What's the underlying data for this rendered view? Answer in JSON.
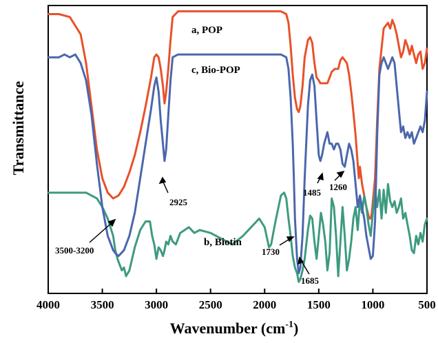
{
  "chart_data": {
    "type": "line",
    "xlabel": "Wavenumber (cm",
    "xlabel_sup": "-1",
    "xlabel_close": ")",
    "ylabel": "Transmittance",
    "xlim": [
      4000,
      500
    ],
    "x_reversed": true,
    "ylim": [
      0,
      100
    ],
    "y_ticks_shown": false,
    "grid": false,
    "x_ticks": [
      4000,
      3500,
      3000,
      2500,
      2000,
      1500,
      1000,
      500
    ],
    "x_tick_labels": [
      "4000",
      "3500",
      "3000",
      "2500",
      "2000",
      "1500",
      "1000",
      "500"
    ],
    "series": [
      {
        "name": "a, POP",
        "color": "#e8512a",
        "x": [
          4000,
          3900,
          3800,
          3700,
          3650,
          3600,
          3550,
          3500,
          3450,
          3400,
          3350,
          3300,
          3250,
          3200,
          3150,
          3100,
          3050,
          3020,
          3000,
          2980,
          2960,
          2940,
          2925,
          2910,
          2890,
          2870,
          2850,
          2800,
          2750,
          2500,
          2000,
          1850,
          1800,
          1780,
          1760,
          1740,
          1720,
          1700,
          1685,
          1670,
          1650,
          1630,
          1600,
          1580,
          1560,
          1540,
          1520,
          1500,
          1485,
          1470,
          1450,
          1420,
          1400,
          1380,
          1350,
          1320,
          1300,
          1280,
          1260,
          1240,
          1220,
          1200,
          1180,
          1160,
          1140,
          1130,
          1120,
          1100,
          1080,
          1060,
          1040,
          1030,
          1020,
          1010,
          1000,
          980,
          960,
          940,
          900,
          860,
          840,
          820,
          800,
          780,
          760,
          740,
          720,
          700,
          680,
          660,
          640,
          620,
          600,
          580,
          560,
          540,
          520,
          500
        ],
        "y": [
          97,
          97,
          96,
          90,
          80,
          65,
          50,
          40,
          35,
          33,
          34,
          37,
          42,
          48,
          56,
          65,
          75,
          82,
          83,
          82,
          78,
          72,
          66,
          70,
          78,
          88,
          96,
          98,
          98,
          98,
          98,
          98,
          97,
          94,
          86,
          76,
          68,
          64,
          63,
          65,
          72,
          82,
          88,
          89,
          87,
          80,
          75,
          74,
          73,
          73,
          73,
          73,
          75,
          77,
          78,
          78,
          81,
          82,
          81,
          80,
          76,
          70,
          63,
          55,
          45,
          40,
          44,
          38,
          34,
          30,
          27,
          26,
          26,
          28,
          32,
          40,
          60,
          78,
          92,
          94,
          92,
          95,
          93,
          90,
          86,
          82,
          84,
          88,
          86,
          83,
          86,
          83,
          80,
          83,
          84,
          78,
          80,
          85
        ]
      },
      {
        "name": "b, Biotin",
        "color": "#3d9a80",
        "x": [
          4000,
          3900,
          3800,
          3700,
          3650,
          3600,
          3550,
          3500,
          3450,
          3400,
          3380,
          3360,
          3340,
          3320,
          3300,
          3280,
          3250,
          3200,
          3150,
          3100,
          3060,
          3040,
          3020,
          3000,
          2980,
          2960,
          2940,
          2925,
          2910,
          2890,
          2870,
          2850,
          2820,
          2780,
          2700,
          2650,
          2600,
          2500,
          2400,
          2300,
          2200,
          2100,
          2050,
          2000,
          1960,
          1940,
          1900,
          1850,
          1820,
          1800,
          1780,
          1760,
          1740,
          1730,
          1720,
          1700,
          1685,
          1670,
          1650,
          1630,
          1600,
          1580,
          1560,
          1540,
          1520,
          1500,
          1480,
          1460,
          1440,
          1420,
          1400,
          1380,
          1360,
          1340,
          1320,
          1300,
          1280,
          1260,
          1240,
          1220,
          1200,
          1180,
          1160,
          1140,
          1120,
          1100,
          1080,
          1060,
          1040,
          1020,
          1000,
          980,
          960,
          940,
          920,
          900,
          880,
          860,
          840,
          820,
          800,
          780,
          760,
          740,
          720,
          700,
          680,
          660,
          640,
          620,
          600,
          580,
          560,
          540,
          520,
          500
        ],
        "y": [
          35,
          35,
          35,
          35,
          35,
          34,
          33,
          30,
          26,
          20,
          15,
          12,
          10,
          8,
          9,
          6,
          8,
          16,
          22,
          25,
          25,
          20,
          17,
          12,
          16,
          15,
          13,
          15,
          18,
          17,
          20,
          18,
          17,
          21,
          23,
          21,
          22,
          21,
          19,
          17,
          20,
          24,
          26,
          23,
          16,
          17,
          25,
          34,
          35,
          33,
          26,
          20,
          13,
          11,
          9,
          7,
          4,
          5,
          8,
          12,
          22,
          27,
          26,
          18,
          12,
          20,
          28,
          24,
          18,
          8,
          14,
          33,
          30,
          20,
          6,
          18,
          30,
          20,
          8,
          12,
          18,
          26,
          30,
          22,
          32,
          28,
          34,
          30,
          24,
          20,
          28,
          36,
          30,
          36,
          26,
          36,
          28,
          38,
          32,
          30,
          32,
          28,
          30,
          33,
          26,
          28,
          24,
          20,
          15,
          14,
          20,
          17,
          21,
          18,
          24,
          26
        ]
      },
      {
        "name": "c, Bio-POP",
        "color": "#4a66ad",
        "x": [
          4000,
          3900,
          3850,
          3800,
          3750,
          3700,
          3650,
          3600,
          3550,
          3500,
          3450,
          3400,
          3380,
          3350,
          3300,
          3250,
          3200,
          3150,
          3100,
          3050,
          3020,
          3000,
          2980,
          2960,
          2940,
          2925,
          2910,
          2890,
          2870,
          2850,
          2800,
          2750,
          2500,
          2000,
          1850,
          1800,
          1780,
          1760,
          1740,
          1730,
          1720,
          1700,
          1685,
          1670,
          1650,
          1630,
          1600,
          1580,
          1560,
          1540,
          1520,
          1500,
          1485,
          1470,
          1450,
          1420,
          1400,
          1380,
          1360,
          1340,
          1320,
          1300,
          1280,
          1260,
          1240,
          1220,
          1200,
          1180,
          1160,
          1140,
          1120,
          1100,
          1080,
          1060,
          1040,
          1020,
          1000,
          980,
          960,
          940,
          920,
          900,
          880,
          860,
          840,
          820,
          800,
          780,
          760,
          740,
          720,
          700,
          680,
          660,
          640,
          620,
          600,
          580,
          560,
          540,
          520,
          500
        ],
        "y": [
          82,
          82,
          83,
          82,
          83,
          80,
          74,
          62,
          45,
          30,
          20,
          15,
          14,
          13,
          15,
          20,
          28,
          40,
          52,
          64,
          72,
          75,
          70,
          60,
          52,
          46,
          50,
          62,
          74,
          82,
          83,
          83,
          83,
          83,
          83,
          82,
          78,
          68,
          52,
          40,
          26,
          12,
          7,
          9,
          20,
          40,
          65,
          74,
          76,
          72,
          60,
          48,
          46,
          48,
          52,
          56,
          52,
          52,
          50,
          52,
          52,
          50,
          45,
          44,
          48,
          52,
          50,
          46,
          38,
          30,
          34,
          30,
          26,
          20,
          16,
          12,
          13,
          25,
          55,
          76,
          80,
          82,
          80,
          78,
          80,
          82,
          80,
          72,
          64,
          56,
          58,
          54,
          56,
          54,
          56,
          52,
          54,
          56,
          58,
          56,
          60,
          70
        ]
      }
    ],
    "annotations": [
      {
        "label": "2925"
      },
      {
        "label": "3500-3200"
      },
      {
        "label": "1730"
      },
      {
        "label": "1685"
      },
      {
        "label": "1485"
      },
      {
        "label": "1260"
      }
    ]
  }
}
